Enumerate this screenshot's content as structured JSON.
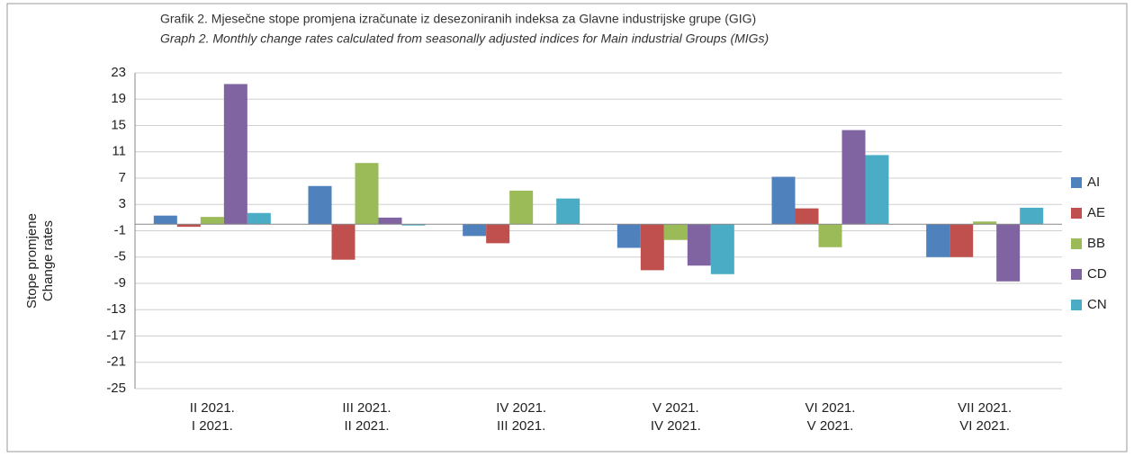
{
  "chart_data": {
    "type": "bar",
    "title": "Grafik 2. Mjesečne stope promjena izračunate iz desezoniranih indeksa za Glavne industrijske grupe (GIG)",
    "subtitle": "Graph 2. Monthly change rates calculated from seasonally adjusted indices for Main industrial Groups (MIGs)",
    "ylabel": [
      "Stope promjene",
      "Change rates"
    ],
    "categories": [
      [
        "II 2021.",
        "I 2021."
      ],
      [
        "III 2021.",
        "II 2021."
      ],
      [
        "IV 2021.",
        "III 2021."
      ],
      [
        "V 2021.",
        "IV 2021."
      ],
      [
        "VI 2021.",
        "V 2021."
      ],
      [
        "VII 2021.",
        "VI 2021."
      ]
    ],
    "series": [
      {
        "name": "AI",
        "color": "#4f81bd",
        "values": [
          1.3,
          5.8,
          -1.8,
          -3.6,
          7.2,
          -5.0
        ]
      },
      {
        "name": "AE",
        "color": "#c0504d",
        "values": [
          -0.4,
          -5.4,
          -2.9,
          -7.0,
          2.4,
          -5.0
        ]
      },
      {
        "name": "BB",
        "color": "#9bbb59",
        "values": [
          1.1,
          9.3,
          5.1,
          -2.4,
          -3.5,
          0.4
        ]
      },
      {
        "name": "CD",
        "color": "#8064a2",
        "values": [
          21.3,
          1.0,
          0,
          -6.3,
          14.3,
          -8.7
        ]
      },
      {
        "name": "CN",
        "color": "#4bacc6",
        "values": [
          1.7,
          -0.2,
          3.9,
          -7.6,
          10.5,
          2.5
        ]
      }
    ],
    "ylim": [
      -25,
      23
    ],
    "yticks": [
      23,
      19,
      15,
      11,
      7,
      3,
      -1,
      -5,
      -9,
      -13,
      -17,
      -21,
      -25
    ],
    "grid": true,
    "legend": "right"
  }
}
